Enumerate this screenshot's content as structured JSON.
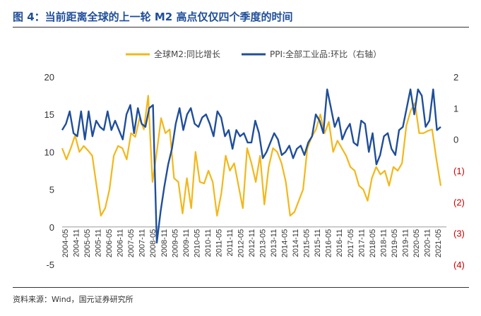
{
  "header": {
    "title": "图 4：当前距离全球的上一轮 M2 高点仅仅四个季度的时间"
  },
  "footer": {
    "source": "资料来源：Wind，国元证券研究所"
  },
  "colors": {
    "m2": "#f2b71a",
    "ppi": "#1f4e9a",
    "title": "#1f4e9a",
    "right_axis_negative": "#cc0000"
  },
  "chart_data": {
    "type": "line",
    "x_ticks": [
      "2004-05",
      "2004-11",
      "2005-05",
      "2005-11",
      "2006-05",
      "2006-11",
      "2007-05",
      "2007-11",
      "2008-05",
      "2008-11",
      "2009-05",
      "2009-11",
      "2010-05",
      "2010-11",
      "2011-05",
      "2011-11",
      "2012-05",
      "2012-11",
      "2013-05",
      "2013-11",
      "2014-05",
      "2014-11",
      "2015-05",
      "2015-11",
      "2016-05",
      "2016-11",
      "2017-05",
      "2017-11",
      "2018-05",
      "2018-11",
      "2019-05",
      "2019-11",
      "2020-05",
      "2020-11",
      "2021-05"
    ],
    "y_left": {
      "ticks": [
        "-5",
        "0",
        "5",
        "10",
        "15",
        "20"
      ],
      "range": [
        -5,
        20
      ]
    },
    "y_right": {
      "ticks": [
        "(4)",
        "(3)",
        "(2)",
        "(1)",
        "0",
        "1",
        "2"
      ],
      "range": [
        -4,
        2
      ]
    },
    "legend_position": "top",
    "series": [
      {
        "name": "全球M2:同比增长",
        "axis": "left",
        "values": [
          10.5,
          9.0,
          10.5,
          12.2,
          10.0,
          10.8,
          10.2,
          9.5,
          5.5,
          1.5,
          2.5,
          5.0,
          9.5,
          10.8,
          10.5,
          9.0,
          12.5,
          12.0,
          14.5,
          13.0,
          17.5,
          6.0,
          10.0,
          14.5,
          12.5,
          13.0,
          6.5,
          6.0,
          1.8,
          6.5,
          2.5,
          10.0,
          6.0,
          5.8,
          7.5,
          6.0,
          1.5,
          4.5,
          9.5,
          7.5,
          8.5,
          5.5,
          2.5,
          10.5,
          8.5,
          6.0,
          9.5,
          3.0,
          8.0,
          10.5,
          10.0,
          8.5,
          6.0,
          1.5,
          2.0,
          3.5,
          5.0,
          10.5,
          12.0,
          13.0,
          15.0,
          12.5,
          14.0,
          10.0,
          11.5,
          10.5,
          9.5,
          8.0,
          7.5,
          5.5,
          5.0,
          3.5,
          6.5,
          8.0,
          7.0,
          7.5,
          5.5,
          8.0,
          7.5,
          8.5,
          13.5,
          15.5,
          16.5,
          12.5,
          12.5,
          12.8,
          13.0,
          9.0,
          5.5
        ]
      },
      {
        "name": "PPI:全部工业品:环比（右轴）",
        "axis": "right",
        "values": [
          0.3,
          0.5,
          0.9,
          0.2,
          0.1,
          0.9,
          0.0,
          0.9,
          0.1,
          0.6,
          0.4,
          0.3,
          0.9,
          0.3,
          0.6,
          0.3,
          0.0,
          0.8,
          1.1,
          0.2,
          1.0,
          0.5,
          0.4,
          1.0,
          1.1,
          -3.3,
          -2.3,
          -1.5,
          -0.8,
          -0.3,
          0.5,
          1.0,
          0.3,
          0.8,
          1.0,
          0.5,
          0.4,
          0.7,
          0.8,
          0.5,
          0.1,
          0.9,
          0.7,
          0.1,
          0.3,
          -0.3,
          0.3,
          0.1,
          0.2,
          -0.1,
          -0.1,
          0.6,
          0.2,
          -0.6,
          -0.4,
          -0.1,
          0.2,
          0.0,
          -0.5,
          -0.4,
          -0.2,
          -0.6,
          -0.3,
          -0.2,
          -0.5,
          -0.1,
          0.1,
          0.8,
          0.6,
          0.2,
          1.6,
          1.0,
          0.4,
          0.7,
          0.0,
          0.3,
          0.5,
          -0.1,
          -0.2,
          0.6,
          0.5,
          -0.4,
          0.2,
          -0.8,
          -0.5,
          0.1,
          0.2,
          -0.3,
          -0.5,
          0.3,
          0.4,
          1.0,
          1.6,
          0.8,
          1.6,
          1.4,
          0.4,
          0.6,
          1.6,
          0.3,
          0.4
        ]
      }
    ]
  }
}
